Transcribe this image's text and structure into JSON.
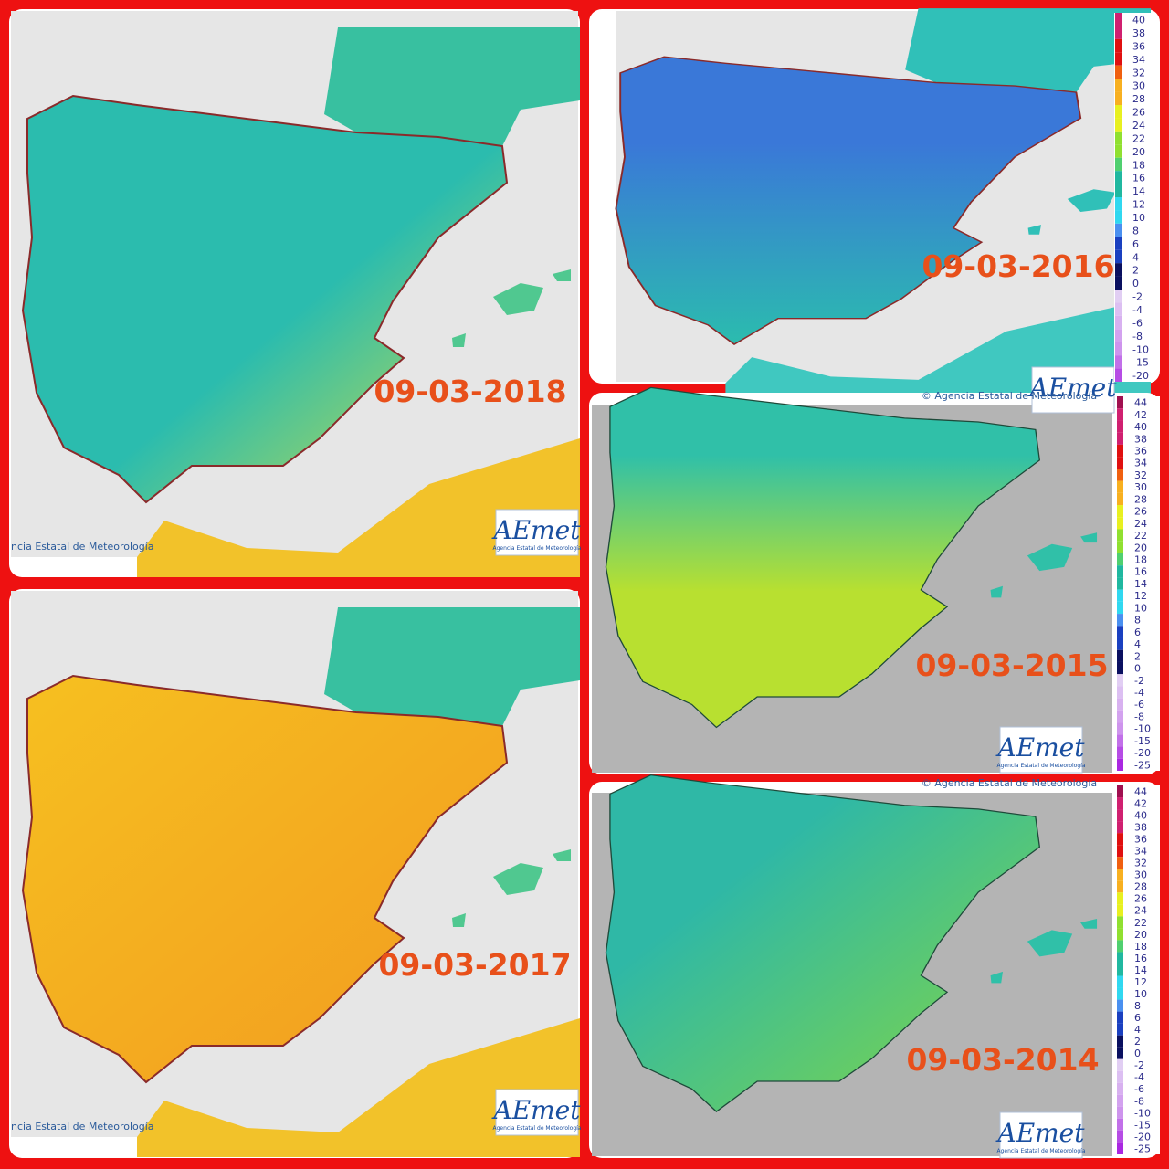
{
  "panels": [
    {
      "date": "09-03-2018",
      "credit": "ncia Estatal de Meteorología",
      "logo": "AEmet",
      "logo_subtitle": "Agencia Estatal de Meteorología"
    },
    {
      "date": "09-03-2016",
      "logo": "AEmet",
      "legend": {
        "values": [
          40,
          38,
          36,
          34,
          32,
          30,
          28,
          26,
          24,
          22,
          20,
          18,
          16,
          14,
          12,
          10,
          8,
          6,
          4,
          2,
          0,
          -2,
          -4,
          -6,
          -8,
          -10,
          -15,
          -20
        ]
      }
    },
    {
      "date": "09-03-2015",
      "credit": "© Agencia Estatal de Meteorología",
      "logo": "AEmet",
      "logo_subtitle": "Agencia Estatal de Meteorología",
      "legend": {
        "values": [
          44,
          42,
          40,
          38,
          36,
          34,
          32,
          30,
          28,
          26,
          24,
          22,
          20,
          18,
          16,
          14,
          12,
          10,
          8,
          6,
          4,
          2,
          0,
          -2,
          -4,
          -6,
          -8,
          -10,
          -15,
          -20,
          -25
        ]
      }
    },
    {
      "date": "09-03-2017",
      "credit": "ncia Estatal de Meteorología",
      "logo": "AEmet",
      "logo_subtitle": "Agencia Estatal de Meteorología"
    },
    {
      "date": "09-03-2014",
      "credit": "© Agencia Estatal de Meteorología",
      "logo": "AEmet",
      "logo_subtitle": "Agencia Estatal de Meteorología",
      "legend": {
        "values": [
          44,
          42,
          40,
          38,
          36,
          34,
          32,
          30,
          28,
          26,
          24,
          22,
          20,
          18,
          16,
          14,
          12,
          10,
          8,
          6,
          4,
          2,
          0,
          -2,
          -4,
          -6,
          -8,
          -10,
          -15,
          -20,
          -25
        ]
      }
    }
  ]
}
